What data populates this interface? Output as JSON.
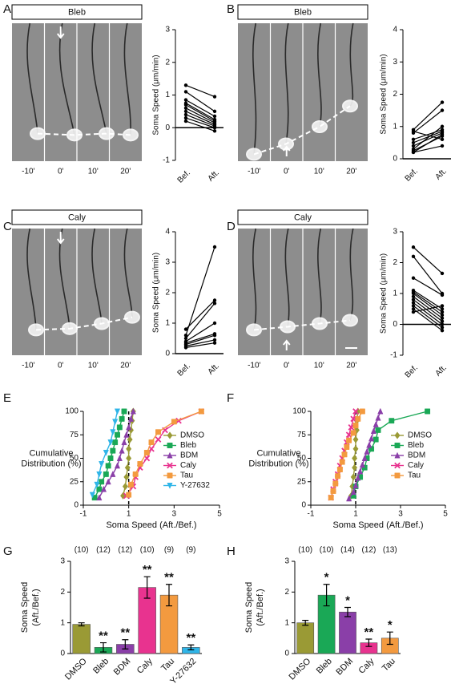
{
  "panels": [
    "A",
    "B",
    "C",
    "D",
    "E",
    "F",
    "G",
    "H"
  ],
  "images": [
    {
      "label": "Bleb",
      "times": [
        "-10'",
        "0'",
        "10'",
        "20'"
      ]
    },
    {
      "label": "Bleb",
      "times": [
        "-10'",
        "0'",
        "10'",
        "20'"
      ]
    },
    {
      "label": "Caly",
      "times": [
        "-10'",
        "0'",
        "10'",
        "20'"
      ]
    },
    {
      "label": "Caly",
      "times": [
        "-10'",
        "0'",
        "10'",
        "20'"
      ]
    }
  ],
  "chart_data": [
    {
      "type": "paired",
      "ylabel": "Soma Speed (μm/min)",
      "categories": [
        "Bef.",
        "Aft."
      ],
      "color": "#000000",
      "ylim": [
        -1,
        3
      ],
      "yticks": [
        -1,
        0,
        1,
        2,
        3
      ],
      "series": [
        {
          "values": [
            1.3,
            0.95
          ]
        },
        {
          "values": [
            1.1,
            0.5
          ]
        },
        {
          "values": [
            0.85,
            0.35
          ]
        },
        {
          "values": [
            0.75,
            0.25
          ]
        },
        {
          "values": [
            0.7,
            0.2
          ]
        },
        {
          "values": [
            0.6,
            0.15
          ]
        },
        {
          "values": [
            0.5,
            0.1
          ]
        },
        {
          "values": [
            0.4,
            0.05
          ]
        },
        {
          "values": [
            0.3,
            0
          ]
        },
        {
          "values": [
            0.2,
            -0.1
          ]
        }
      ]
    },
    {
      "type": "paired",
      "ylabel": "Soma Speed (μm/min)",
      "categories": [
        "Bef.",
        "Aft."
      ],
      "color": "#000000",
      "ylim": [
        0,
        4
      ],
      "yticks": [
        0,
        1,
        2,
        3,
        4
      ],
      "series": [
        {
          "values": [
            0.9,
            1.75
          ]
        },
        {
          "values": [
            0.85,
            0.6
          ]
        },
        {
          "values": [
            0.8,
            1.5
          ]
        },
        {
          "values": [
            0.6,
            0.9
          ]
        },
        {
          "values": [
            0.5,
            0.85
          ]
        },
        {
          "values": [
            0.4,
            0.8
          ]
        },
        {
          "values": [
            0.3,
            1.0
          ]
        },
        {
          "values": [
            0.25,
            0.7
          ]
        },
        {
          "values": [
            0.2,
            0.75
          ]
        },
        {
          "values": [
            0.2,
            0.4
          ]
        }
      ]
    },
    {
      "type": "paired",
      "ylabel": "Soma Speed (μm/min)",
      "categories": [
        "Bef.",
        "Aft."
      ],
      "color": "#000000",
      "ylim": [
        0,
        4
      ],
      "yticks": [
        0,
        1,
        2,
        3,
        4
      ],
      "series": [
        {
          "values": [
            0.8,
            1.75
          ]
        },
        {
          "values": [
            0.6,
            3.5
          ]
        },
        {
          "values": [
            0.5,
            1.65
          ]
        },
        {
          "values": [
            0.4,
            1.0
          ]
        },
        {
          "values": [
            0.35,
            0.65
          ]
        },
        {
          "values": [
            0.3,
            0.6
          ]
        },
        {
          "values": [
            0.25,
            0.45
          ]
        },
        {
          "values": [
            0.2,
            0.35
          ]
        }
      ]
    },
    {
      "type": "paired",
      "ylabel": "Soma Speed (μm/min)",
      "categories": [
        "Bef.",
        "Aft."
      ],
      "color": "#000000",
      "ylim": [
        -1,
        3
      ],
      "yticks": [
        -1,
        0,
        1,
        2,
        3
      ],
      "series": [
        {
          "values": [
            2.5,
            1.65
          ]
        },
        {
          "values": [
            2.2,
            1.0
          ]
        },
        {
          "values": [
            1.5,
            0.95
          ]
        },
        {
          "values": [
            1.1,
            0.5
          ]
        },
        {
          "values": [
            1.05,
            0.4
          ]
        },
        {
          "values": [
            1.0,
            0.3
          ]
        },
        {
          "values": [
            0.9,
            0.2
          ]
        },
        {
          "values": [
            0.8,
            0.1
          ]
        },
        {
          "values": [
            0.7,
            0.0
          ]
        },
        {
          "values": [
            0.6,
            -0.1
          ]
        },
        {
          "values": [
            0.5,
            -0.2
          ]
        },
        {
          "values": [
            0.4,
            0.6
          ]
        }
      ]
    },
    {
      "type": "line",
      "xlabel": "Soma Speed (Aft./Bef.)",
      "ylabel": [
        "Cumulative",
        "Distribution (%)"
      ],
      "xlim": [
        -1,
        5
      ],
      "xticks": [
        -1,
        1,
        3,
        5
      ],
      "ylim": [
        0,
        100
      ],
      "yticks": [
        0,
        25,
        50,
        75,
        100
      ],
      "reference_x": 1,
      "series": [
        {
          "name": "DMSO",
          "color": "#9a9a35",
          "marker": "diamond",
          "x": [
            0.75,
            0.85,
            0.9,
            0.95,
            1.0,
            1.0,
            1.05,
            1.1,
            1.15,
            1.2
          ],
          "values": [
            10,
            20,
            30,
            40,
            50,
            60,
            70,
            80,
            90,
            100
          ]
        },
        {
          "name": "Bleb",
          "color": "#1aa856",
          "marker": "square",
          "x": [
            -0.5,
            -0.3,
            -0.2,
            0,
            0.1,
            0.2,
            0.3,
            0.4,
            0.5,
            0.6,
            0.7,
            0.8
          ],
          "values": [
            8,
            17,
            25,
            33,
            42,
            50,
            58,
            67,
            75,
            83,
            92,
            100
          ]
        },
        {
          "name": "BDM",
          "color": "#8a3fa8",
          "marker": "triangle",
          "x": [
            -0.3,
            -0.1,
            0.1,
            0.3,
            0.5,
            0.6,
            0.7,
            0.8,
            0.9,
            1.0,
            1.1,
            1.2
          ],
          "values": [
            8,
            17,
            25,
            33,
            42,
            50,
            58,
            67,
            75,
            83,
            92,
            100
          ]
        },
        {
          "name": "Caly",
          "color": "#e8338f",
          "marker": "cross",
          "x": [
            0.9,
            1.2,
            1.3,
            1.5,
            1.8,
            2.0,
            2.3,
            2.6,
            3.2,
            4.2
          ],
          "values": [
            10,
            20,
            30,
            40,
            50,
            60,
            70,
            80,
            90,
            100
          ]
        },
        {
          "name": "Tau",
          "color": "#f39a3f",
          "marker": "square",
          "x": [
            1.0,
            1.1,
            1.3,
            1.5,
            1.8,
            2.0,
            2.3,
            3.0,
            4.2
          ],
          "values": [
            11,
            22,
            33,
            44,
            56,
            67,
            78,
            89,
            100
          ]
        },
        {
          "name": "Y-27632",
          "color": "#2fb5e8",
          "marker": "triangle-down",
          "x": [
            -0.6,
            -0.4,
            -0.3,
            -0.2,
            0,
            0.2,
            0.3,
            0.4,
            0.5
          ],
          "values": [
            11,
            22,
            33,
            44,
            56,
            67,
            78,
            89,
            100
          ]
        }
      ]
    },
    {
      "type": "line",
      "xlabel": "Soma Speed (Aft./Bef.)",
      "ylabel": [
        "Cumulative",
        "Distribution (%)"
      ],
      "xlim": [
        -1,
        5
      ],
      "xticks": [
        -1,
        1,
        3,
        5
      ],
      "ylim": [
        0,
        100
      ],
      "yticks": [
        0,
        25,
        50,
        75,
        100
      ],
      "reference_x": 1,
      "series": [
        {
          "name": "DMSO",
          "color": "#9a9a35",
          "marker": "diamond",
          "x": [
            0.8,
            0.85,
            0.9,
            0.95,
            0.95,
            1.0,
            1.0,
            1.05,
            1.05,
            1.1
          ],
          "values": [
            10,
            20,
            30,
            40,
            50,
            60,
            70,
            80,
            90,
            100
          ]
        },
        {
          "name": "Bleb",
          "color": "#1aa856",
          "marker": "square",
          "x": [
            0.9,
            1.0,
            1.2,
            1.4,
            1.5,
            1.7,
            1.9,
            2.0,
            2.6,
            4.2
          ],
          "values": [
            10,
            20,
            30,
            40,
            50,
            60,
            70,
            80,
            90,
            100
          ]
        },
        {
          "name": "BDM",
          "color": "#8a3fa8",
          "marker": "triangle",
          "x": [
            0.7,
            0.9,
            1.0,
            1.1,
            1.2,
            1.3,
            1.4,
            1.5,
            1.6,
            1.7,
            1.8,
            1.9,
            2.0,
            2.1
          ],
          "values": [
            7,
            14,
            21,
            29,
            36,
            43,
            50,
            57,
            64,
            71,
            79,
            86,
            93,
            100
          ]
        },
        {
          "name": "Caly",
          "color": "#e8338f",
          "marker": "cross",
          "x": [
            -0.1,
            0,
            0.1,
            0.2,
            0.3,
            0.4,
            0.5,
            0.6,
            0.7,
            0.8,
            0.9,
            1.0
          ],
          "values": [
            8,
            17,
            25,
            33,
            42,
            50,
            58,
            67,
            75,
            83,
            92,
            100
          ]
        },
        {
          "name": "Tau",
          "color": "#f39a3f",
          "marker": "square",
          "x": [
            -0.1,
            0,
            0.1,
            0.2,
            0.3,
            0.4,
            0.5,
            0.6,
            0.7,
            0.9,
            1.0,
            1.1,
            1.3
          ],
          "values": [
            8,
            15,
            23,
            31,
            38,
            46,
            54,
            62,
            69,
            77,
            85,
            92,
            100
          ]
        }
      ]
    },
    {
      "type": "bar",
      "ylabel": [
        "Soma Speed",
        "(Aft./Bef.)"
      ],
      "ylim": [
        0,
        3
      ],
      "yticks": [
        0,
        1,
        2,
        3
      ],
      "categories": [
        "DMSO",
        "Bleb",
        "BDM",
        "Caly",
        "Tau",
        "Y-27632"
      ],
      "values": [
        0.95,
        0.2,
        0.3,
        2.15,
        1.9,
        0.2
      ],
      "errors": [
        0.05,
        0.15,
        0.15,
        0.35,
        0.35,
        0.08
      ],
      "colors": [
        "#9a9a35",
        "#1aa856",
        "#8a3fa8",
        "#e8338f",
        "#f39a3f",
        "#2fb5e8"
      ],
      "n_labels": [
        "(10)",
        "(12)",
        "(12)",
        "(10)",
        "(9)",
        "(9)"
      ],
      "significance": [
        null,
        "**",
        "**",
        "**",
        "**",
        "**"
      ]
    },
    {
      "type": "bar",
      "ylabel": [
        "Soma Speed",
        "(Aft./Bef.)"
      ],
      "ylim": [
        0,
        3
      ],
      "yticks": [
        0,
        1,
        2,
        3
      ],
      "categories": [
        "DMSO",
        "Bleb",
        "BDM",
        "Caly",
        "Tau"
      ],
      "values": [
        1.0,
        1.9,
        1.35,
        0.35,
        0.5
      ],
      "errors": [
        0.08,
        0.35,
        0.15,
        0.12,
        0.2
      ],
      "colors": [
        "#9a9a35",
        "#1aa856",
        "#8a3fa8",
        "#e8338f",
        "#f39a3f"
      ],
      "n_labels": [
        "(10)",
        "(10)",
        "(14)",
        "(12)",
        "(13)"
      ],
      "significance": [
        null,
        "*",
        "*",
        "**",
        "*"
      ]
    }
  ]
}
